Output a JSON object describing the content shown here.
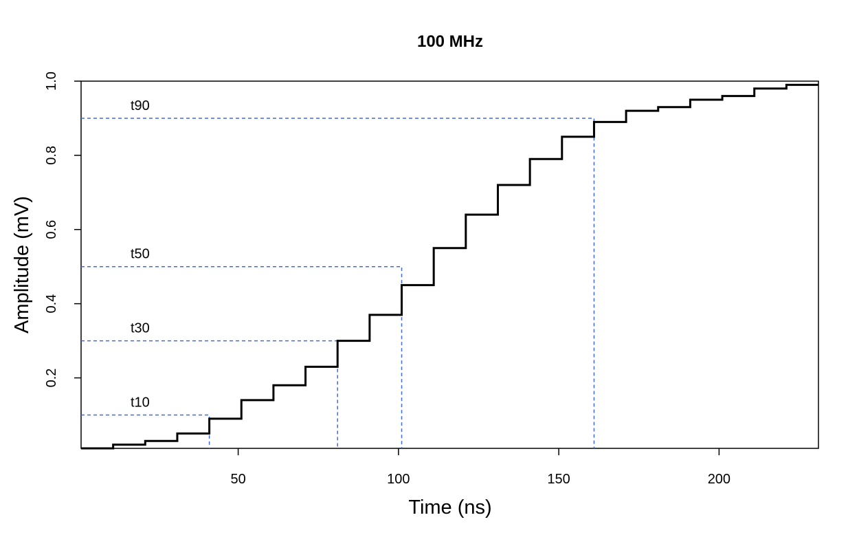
{
  "chart_data": {
    "type": "line",
    "title": "100 MHz",
    "xlabel": "Time (ns)",
    "ylabel": "Amplitude (mV)",
    "xlim": [
      1,
      231
    ],
    "ylim": [
      0.01,
      1.0
    ],
    "xticks": [
      50,
      100,
      150,
      200
    ],
    "yticks": [
      0.2,
      0.4,
      0.6,
      0.8,
      1.0
    ],
    "ytick_labels": [
      "0.2",
      "0.4",
      "0.6",
      "0.8",
      "1.0"
    ],
    "grid": false,
    "series": [
      {
        "style": "step",
        "color": "#000000",
        "x": [
          1,
          11,
          21,
          31,
          41,
          51,
          61,
          71,
          81,
          91,
          101,
          111,
          121,
          131,
          141,
          151,
          161,
          171,
          181,
          191,
          201,
          211,
          221,
          231
        ],
        "values": [
          0.01,
          0.02,
          0.03,
          0.05,
          0.09,
          0.14,
          0.18,
          0.23,
          0.3,
          0.37,
          0.45,
          0.55,
          0.64,
          0.72,
          0.79,
          0.85,
          0.89,
          0.92,
          0.93,
          0.95,
          0.96,
          0.98,
          0.99,
          0.99
        ]
      }
    ],
    "annotations": [
      {
        "label": "t10",
        "level": 0.1,
        "time": 41,
        "color": "#4169e1"
      },
      {
        "label": "t30",
        "level": 0.3,
        "time": 81,
        "color": "#4169e1"
      },
      {
        "label": "t50",
        "level": 0.5,
        "time": 101,
        "color": "#4169e1"
      },
      {
        "label": "t90",
        "level": 0.9,
        "time": 161,
        "color": "#4169e1"
      }
    ]
  }
}
